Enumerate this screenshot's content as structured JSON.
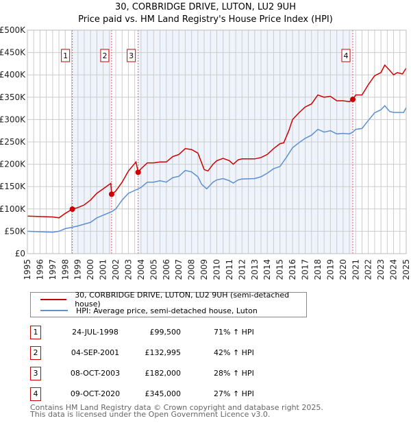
{
  "title": "30, CORBRIDGE DRIVE, LUTON, LU2 9UH",
  "subtitle": "Price paid vs. HM Land Registry's House Price Index (HPI)",
  "colors": {
    "property": "#cc0000",
    "hpi": "#5b8fd0",
    "shade": "#eef3fc",
    "grid": "#cccccc"
  },
  "chart_data": {
    "type": "line",
    "title": "30, CORBRIDGE DRIVE, LUTON, LU2 9UH",
    "xlim": [
      1995,
      2025
    ],
    "ylim": [
      0,
      500000
    ],
    "x_ticks": [
      "1995",
      "1996",
      "1997",
      "1998",
      "1999",
      "2000",
      "2001",
      "2002",
      "2003",
      "2004",
      "2005",
      "2006",
      "2007",
      "2008",
      "2009",
      "2010",
      "2011",
      "2012",
      "2013",
      "2014",
      "2015",
      "2016",
      "2017",
      "2018",
      "2019",
      "2020",
      "2021",
      "2022",
      "2023",
      "2024",
      "2025"
    ],
    "y_ticks": [
      {
        "v": 0,
        "label": "£0"
      },
      {
        "v": 50000,
        "label": "£50K"
      },
      {
        "v": 100000,
        "label": "£100K"
      },
      {
        "v": 150000,
        "label": "£150K"
      },
      {
        "v": 200000,
        "label": "£200K"
      },
      {
        "v": 250000,
        "label": "£250K"
      },
      {
        "v": 300000,
        "label": "£300K"
      },
      {
        "v": 350000,
        "label": "£350K"
      },
      {
        "v": 400000,
        "label": "£400K"
      },
      {
        "v": 450000,
        "label": "£450K"
      },
      {
        "v": 500000,
        "label": "£500K"
      }
    ],
    "grid": true,
    "series": [
      {
        "name": "30, CORBRIDGE DRIVE, LUTON, LU2 9UH (semi-detached house)",
        "x": [
          1995,
          1996,
          1997,
          1997.5,
          1998,
          1998.56,
          1999,
          1999.5,
          2000,
          2000.5,
          2001,
          2001.5,
          2001.6,
          2001.67,
          2002,
          2002.5,
          2003,
          2003.6,
          2003.77,
          2004,
          2004.5,
          2005,
          2005.5,
          2006,
          2006.5,
          2007,
          2007.5,
          2008,
          2008.5,
          2009,
          2009.3,
          2009.7,
          2010,
          2010.5,
          2011,
          2011.3,
          2011.7,
          2012,
          2013,
          2013.5,
          2014,
          2014.5,
          2015,
          2015.3,
          2015.7,
          2016,
          2016.5,
          2017,
          2017.5,
          2018,
          2018.5,
          2019,
          2019.5,
          2020,
          2020.5,
          2020.77,
          2021,
          2021.5,
          2022,
          2022.5,
          2023,
          2023.3,
          2023.7,
          2024,
          2024.3,
          2024.7,
          2025
        ],
        "y": [
          84000,
          83000,
          82000,
          80000,
          90000,
          99500,
          103000,
          109000,
          120000,
          135000,
          145000,
          155000,
          157000,
          132995,
          140000,
          160000,
          185000,
          205000,
          182000,
          190000,
          203000,
          203000,
          205000,
          205000,
          217000,
          222000,
          235000,
          233000,
          225000,
          188000,
          185000,
          200000,
          208000,
          213000,
          208000,
          200000,
          210000,
          212000,
          212000,
          215000,
          222000,
          235000,
          246000,
          248000,
          275000,
          300000,
          315000,
          328000,
          335000,
          355000,
          350000,
          352000,
          342000,
          342000,
          340000,
          345000,
          355000,
          355000,
          378000,
          398000,
          405000,
          422000,
          410000,
          400000,
          405000,
          402000,
          415000
        ]
      },
      {
        "name": "HPI: Average price, semi-detached house, Luton",
        "x": [
          1995,
          1996,
          1997,
          1997.5,
          1998,
          1998.56,
          1999,
          2000,
          2000.5,
          2001,
          2001.67,
          2002,
          2002.5,
          2003,
          2003.77,
          2004,
          2004.5,
          2005,
          2005.5,
          2006,
          2006.5,
          2007,
          2007.5,
          2008,
          2008.5,
          2008.8,
          2009.2,
          2009.7,
          2010,
          2010.5,
          2011,
          2011.3,
          2011.7,
          2012,
          2013,
          2013.5,
          2014,
          2014.5,
          2015,
          2015.5,
          2016,
          2016.5,
          2017,
          2017.5,
          2018,
          2018.5,
          2019,
          2019.5,
          2020,
          2020.5,
          2020.77,
          2021,
          2021.5,
          2022,
          2022.5,
          2023,
          2023.3,
          2023.7,
          2024,
          2024.5,
          2024.8,
          2025
        ],
        "y": [
          50000,
          49000,
          48000,
          50000,
          56000,
          59000,
          62000,
          70000,
          80000,
          86000,
          94000,
          100000,
          120000,
          135000,
          145000,
          148000,
          160000,
          160000,
          163000,
          160000,
          170000,
          173000,
          186000,
          183000,
          172000,
          155000,
          145000,
          160000,
          165000,
          168000,
          163000,
          158000,
          165000,
          167000,
          168000,
          172000,
          180000,
          190000,
          195000,
          215000,
          237000,
          248000,
          258000,
          265000,
          278000,
          272000,
          275000,
          268000,
          269000,
          268000,
          272000,
          278000,
          280000,
          298000,
          315000,
          322000,
          331000,
          318000,
          316000,
          316000,
          316000,
          327000
        ]
      }
    ],
    "sales": [
      {
        "n": "1",
        "x": 1998.56,
        "y": 99500
      },
      {
        "n": "2",
        "x": 2001.67,
        "y": 132995
      },
      {
        "n": "3",
        "x": 2003.77,
        "y": 182000
      },
      {
        "n": "4",
        "x": 2020.77,
        "y": 345000
      }
    ],
    "legend_placement": "bottom"
  },
  "legend": [
    {
      "label": "30, CORBRIDGE DRIVE, LUTON, LU2 9UH (semi-detached house)"
    },
    {
      "label": "HPI: Average price, semi-detached house, Luton"
    }
  ],
  "transactions": [
    {
      "n": "1",
      "date": "24-JUL-1998",
      "price": "£99,500",
      "hpi": "71% ↑ HPI"
    },
    {
      "n": "2",
      "date": "04-SEP-2001",
      "price": "£132,995",
      "hpi": "42% ↑ HPI"
    },
    {
      "n": "3",
      "date": "08-OCT-2003",
      "price": "£182,000",
      "hpi": "28% ↑ HPI"
    },
    {
      "n": "4",
      "date": "09-OCT-2020",
      "price": "£345,000",
      "hpi": "27% ↑ HPI"
    }
  ],
  "footer": {
    "line1": "Contains HM Land Registry data © Crown copyright and database right 2025.",
    "line2": "This data is licensed under the Open Government Licence v3.0."
  }
}
